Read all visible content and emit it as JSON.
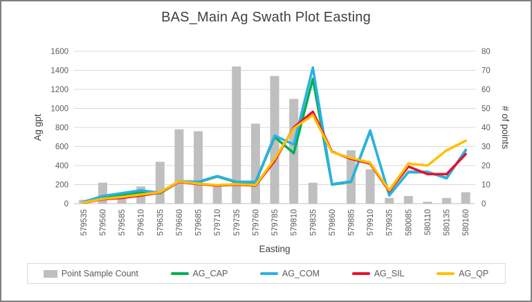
{
  "chart_data": {
    "type": "combo",
    "title": "BAS_Main Ag Swath Plot Easting",
    "xlabel": "Easting",
    "ylabel_left": "Ag gpt",
    "ylabel_right": "# of points",
    "ylim_left": [
      0,
      1600
    ],
    "ytick_step_left": 200,
    "ylim_right": [
      0,
      80
    ],
    "ytick_step_right": 10,
    "grid": "horizontal",
    "legend_position": "bottom",
    "categories": [
      "579535",
      "579560",
      "579585",
      "579610",
      "579635",
      "579660",
      "579685",
      "579710",
      "579735",
      "579760",
      "579785",
      "579810",
      "579835",
      "579860",
      "579885",
      "579910",
      "579935",
      "580085",
      "580110",
      "580135",
      "580160"
    ],
    "bar_series": {
      "name": "Point Sample Count",
      "axis": "right",
      "color": "#BFBFBF",
      "values": [
        2,
        11,
        4,
        9,
        22,
        39,
        38,
        9,
        72,
        42,
        67,
        55,
        11,
        0,
        28,
        18,
        3,
        4,
        1,
        3,
        6
      ]
    },
    "line_series": [
      {
        "name": "AG_CAP",
        "axis": "left",
        "color": "#00B050",
        "values": [
          15,
          60,
          90,
          120,
          110,
          230,
          225,
          285,
          225,
          225,
          700,
          530,
          1310,
          200,
          230,
          760,
          90,
          330,
          330,
          270,
          560
        ]
      },
      {
        "name": "AG_COM",
        "axis": "left",
        "color": "#2BB0E8",
        "values": [
          20,
          80,
          110,
          140,
          115,
          235,
          230,
          290,
          230,
          230,
          715,
          620,
          1430,
          205,
          235,
          770,
          85,
          335,
          335,
          265,
          565
        ]
      },
      {
        "name": "AG_SIL",
        "axis": "left",
        "color": "#E8112D",
        "values": [
          10,
          45,
          60,
          85,
          115,
          230,
          205,
          190,
          200,
          190,
          450,
          800,
          965,
          545,
          470,
          420,
          130,
          390,
          310,
          310,
          520
        ]
      },
      {
        "name": "AG_QP",
        "axis": "left",
        "color": "#FFC000",
        "values": [
          12,
          50,
          70,
          95,
          120,
          235,
          210,
          195,
          205,
          195,
          470,
          790,
          930,
          540,
          480,
          430,
          140,
          420,
          400,
          560,
          660
        ]
      }
    ]
  },
  "colors": {
    "bar": "#BFBFBF",
    "gridline": "#D9D9D9",
    "axis_line": "#BFBFBF",
    "title_text": "#404040",
    "tick_text": "#595959",
    "frame_border": "#7F7F7F"
  }
}
